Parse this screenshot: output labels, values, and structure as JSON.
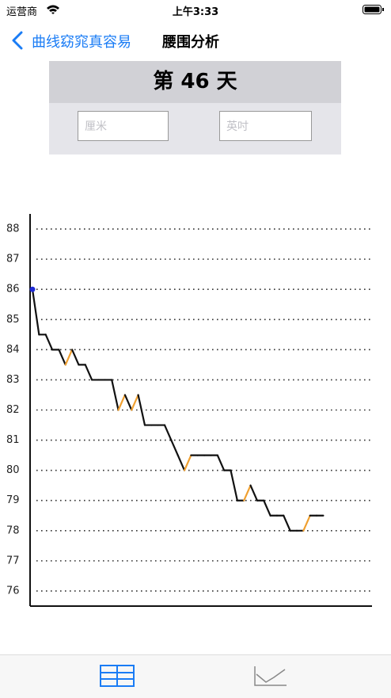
{
  "status_bar": {
    "carrier": "运营商",
    "time": "上午3:33"
  },
  "nav": {
    "back": "曲线窈窕真容易",
    "title": "腰围分析"
  },
  "header": {
    "title": "第 46 天",
    "inputs": [
      {
        "placeholder": "厘米"
      },
      {
        "placeholder": "英吋"
      }
    ]
  },
  "chart_data": {
    "type": "line",
    "values": [
      86,
      84.5,
      84.5,
      84,
      84,
      83.5,
      84,
      83.5,
      83.5,
      83,
      83,
      83,
      83,
      82,
      82.5,
      82,
      82.5,
      81.5,
      81.5,
      81.5,
      81.5,
      81,
      80.5,
      80,
      80.5,
      80.5,
      80.5,
      80.5,
      80.5,
      80,
      80,
      79,
      79,
      79.5,
      79,
      79,
      78.5,
      78.5,
      78.5,
      78,
      78,
      78,
      78.5,
      78.5,
      78.5
    ],
    "color": "#111111",
    "rise_color": "#f0a030",
    "marker_color": "#1f2bd6",
    "ylim": [
      75.5,
      88.5
    ],
    "yticks": [
      76,
      77,
      78,
      79,
      80,
      81,
      82,
      83,
      84,
      85,
      86,
      87,
      88
    ],
    "grid": true
  }
}
